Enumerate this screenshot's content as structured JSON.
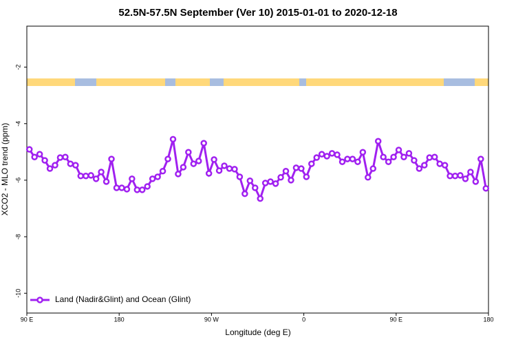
{
  "chart_data": {
    "type": "line",
    "title": "52.5N-57.5N September (Ver 10)   2015-01-01 to 2020-12-18",
    "xlabel": "Longitude (deg E)",
    "ylabel": "XCO2 - MLO trend (ppm)",
    "x": [
      92.5,
      97.5,
      102.5,
      107.5,
      112.5,
      117.5,
      122.5,
      127.5,
      132.5,
      137.5,
      142.5,
      147.5,
      152.5,
      157.5,
      162.5,
      167.5,
      172.5,
      177.5,
      182.5,
      187.5,
      192.5,
      197.5,
      202.5,
      207.5,
      212.5,
      217.5,
      222.5,
      227.5,
      232.5,
      237.5,
      242.5,
      247.5,
      252.5,
      257.5,
      262.5,
      267.5,
      272.5,
      277.5,
      282.5,
      287.5,
      292.5,
      297.5,
      302.5,
      307.5,
      312.5,
      317.5,
      322.5,
      327.5,
      332.5,
      337.5,
      342.5,
      347.5,
      352.5,
      357.5,
      362.5,
      367.5,
      372.5,
      377.5,
      382.5,
      387.5,
      392.5,
      397.5,
      402.5,
      407.5,
      412.5,
      417.5,
      422.5,
      427.5,
      432.5,
      437.5,
      442.5,
      447.5,
      452.5,
      457.5,
      462.5,
      467.5,
      472.5,
      477.5,
      482.5,
      487.5,
      492.5,
      497.5,
      502.5,
      507.5,
      512.5,
      517.5,
      522.5,
      527.5,
      532.5,
      537.5
    ],
    "series": [
      {
        "name": "Land (Nadir&Glint) and Ocean (Glint)",
        "color": "#a020f0",
        "values": [
          -4.91,
          -5.18,
          -5.08,
          -5.3,
          -5.59,
          -5.47,
          -5.2,
          -5.18,
          -5.42,
          -5.47,
          -5.85,
          -5.85,
          -5.83,
          -5.95,
          -5.71,
          -6.05,
          -5.25,
          -6.27,
          -6.27,
          -6.32,
          -5.95,
          -6.34,
          -6.34,
          -6.22,
          -5.95,
          -5.88,
          -5.68,
          -5.25,
          -4.55,
          -5.78,
          -5.54,
          -5.01,
          -5.42,
          -5.32,
          -4.69,
          -5.76,
          -5.27,
          -5.66,
          -5.49,
          -5.59,
          -5.61,
          -5.88,
          -6.48,
          -6.02,
          -6.27,
          -6.65,
          -6.1,
          -6.05,
          -6.12,
          -5.9,
          -5.68,
          -6.0,
          -5.56,
          -5.59,
          -5.88,
          -5.42,
          -5.2,
          -5.08,
          -5.15,
          -5.05,
          -5.1,
          -5.35,
          -5.25,
          -5.25,
          -5.35,
          -5.01,
          -5.9,
          -5.59,
          -4.62,
          -5.18,
          -5.35,
          -5.18,
          -4.93,
          -5.18,
          -5.05,
          -5.3,
          -5.59,
          -5.47,
          -5.2,
          -5.18,
          -5.42,
          -5.47,
          -5.85,
          -5.85,
          -5.83,
          -5.95,
          -5.71,
          -6.05,
          -5.25,
          -6.29
        ]
      }
    ],
    "xlim": [
      90,
      540
    ],
    "ylim": [
      -10.7,
      -0.55
    ],
    "xticks": [
      {
        "value": 90,
        "label": "90 E"
      },
      {
        "value": 180,
        "label": "180"
      },
      {
        "value": 270,
        "label": "90 W"
      },
      {
        "value": 360,
        "label": "0"
      },
      {
        "value": 450,
        "label": "90 E"
      },
      {
        "value": 540,
        "label": "180"
      }
    ],
    "yticks": [
      -2,
      -4,
      -6,
      -8,
      -10
    ],
    "legend": "lower left"
  }
}
